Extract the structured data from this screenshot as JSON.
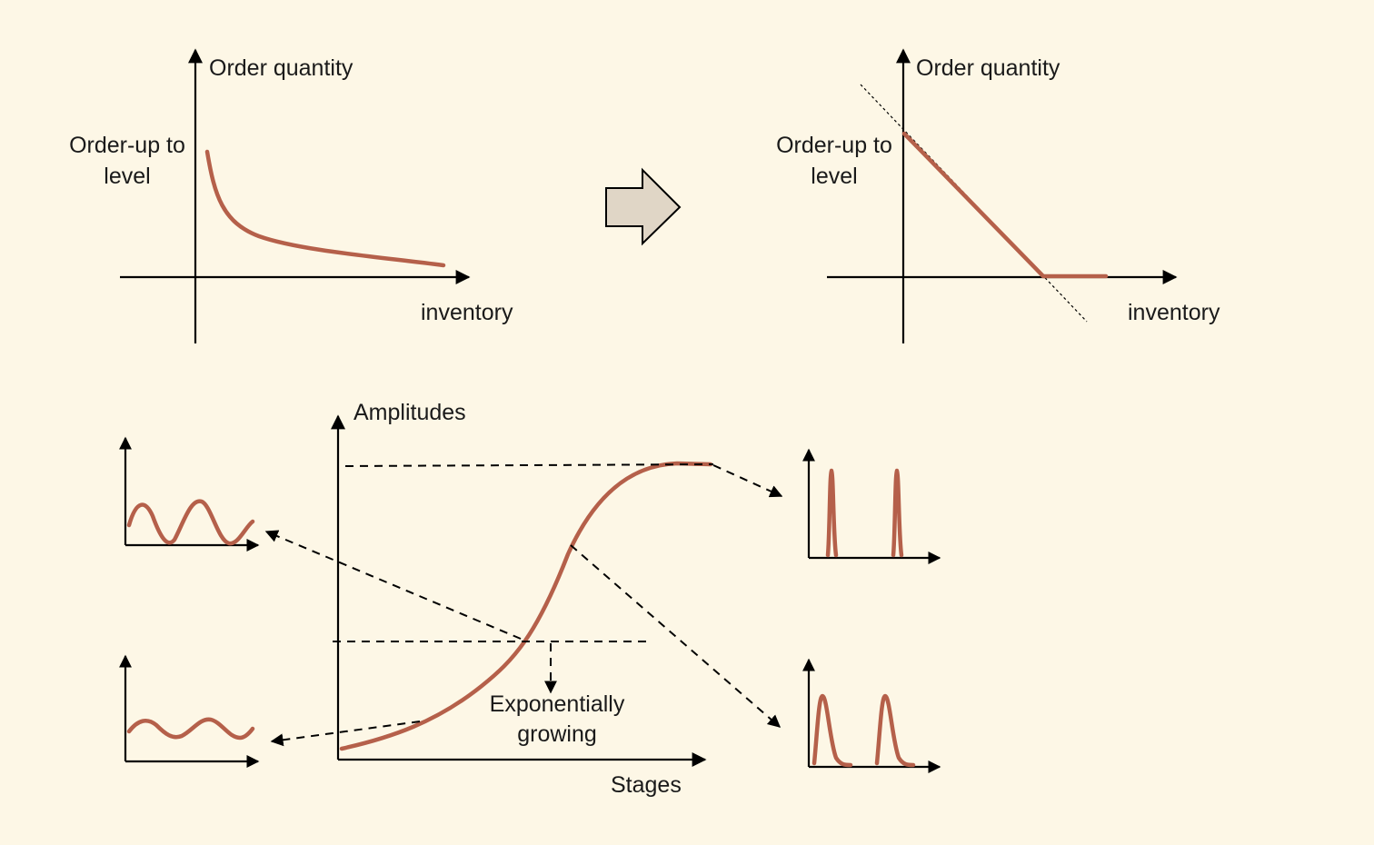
{
  "top_left": {
    "y_label": "Order quantity",
    "x_label": "inventory",
    "level_label_1": "Order-up to",
    "level_label_2": "level"
  },
  "top_right": {
    "y_label": "Order quantity",
    "x_label": "inventory",
    "level_label_1": "Order-up to",
    "level_label_2": "level"
  },
  "bottom": {
    "y_label": "Amplitudes",
    "x_label": "Stages",
    "note_1": "Exponentially",
    "note_2": "growing"
  },
  "colors": {
    "background": "#fdf7e6",
    "curve": "#b5604a",
    "arrow_fill": "#e0d6c6"
  }
}
